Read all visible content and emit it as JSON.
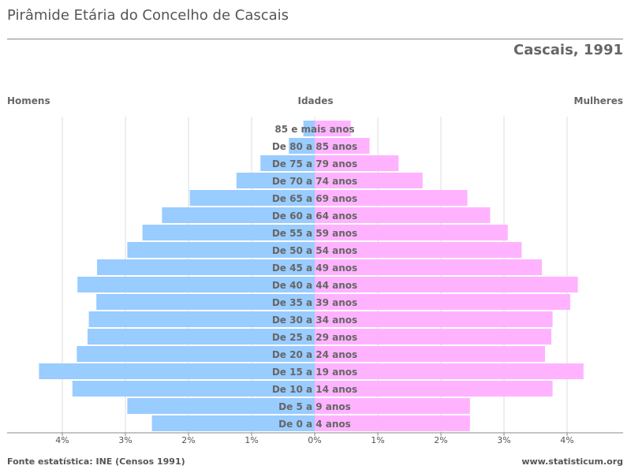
{
  "header": {
    "title": "Pirâmide Etária do Concelho de Cascais",
    "subtitle": "Cascais, 1991",
    "label_left": "Homens",
    "label_center": "Idades",
    "label_right": "Mulheres"
  },
  "footer": {
    "source": "Fonte estatística: INE (Censos 1991)",
    "site": "www.statisticum.org"
  },
  "chart_data": {
    "type": "bar",
    "orientation": "horizontal-pyramid",
    "title": "Pirâmide Etária do Concelho de Cascais",
    "subtitle": "Cascais, 1991",
    "categories": [
      "85 e mais anos",
      "De 80 a 85 anos",
      "De 75 a 79 anos",
      "De 70 a 74 anos",
      "De 65 a 69 anos",
      "De 60 a 64 anos",
      "De 55 a 59 anos",
      "De 50 a 54 anos",
      "De 45 a 49 anos",
      "De 40 a 44 anos",
      "De 35 a 39 anos",
      "De 30 a 34 anos",
      "De 25 a 29 anos",
      "De 20 a 24 anos",
      "De 15 a 19 anos",
      "De 10 a 14 anos",
      "De 5 a 9 anos",
      "De 0 a 4 anos"
    ],
    "series": [
      {
        "name": "Homens",
        "color": "#99ccff",
        "values": [
          0.18,
          0.41,
          0.86,
          1.24,
          1.98,
          2.42,
          2.73,
          2.97,
          3.45,
          3.76,
          3.46,
          3.58,
          3.6,
          3.77,
          4.37,
          3.84,
          2.97,
          2.58
        ]
      },
      {
        "name": "Mulheres",
        "color": "#ffb3ff",
        "values": [
          0.57,
          0.87,
          1.33,
          1.71,
          2.42,
          2.78,
          3.06,
          3.28,
          3.6,
          4.17,
          4.05,
          3.77,
          3.75,
          3.65,
          4.26,
          3.77,
          2.46,
          2.46
        ]
      }
    ],
    "xticks": [
      "4%",
      "3%",
      "2%",
      "1%",
      "0%",
      "1%",
      "2%",
      "3%",
      "4%"
    ],
    "xlim": [
      -4,
      4
    ],
    "xlabel": "",
    "ylabel": "Idades",
    "grid": "vertical",
    "colors": {
      "men": "#99ccff",
      "women": "#ffb3ff",
      "grid": "#dddddd",
      "axis": "#888888",
      "text": "#666666"
    }
  }
}
